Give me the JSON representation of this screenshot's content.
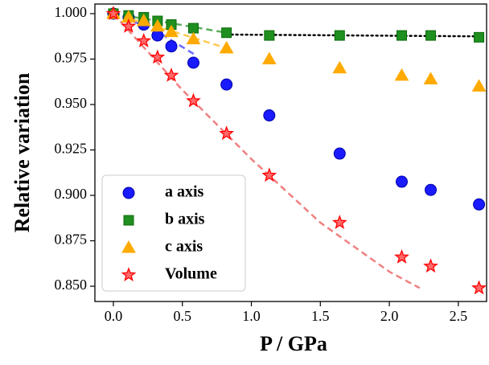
{
  "chart_data": {
    "type": "scatter",
    "xlabel": "P / GPa",
    "ylabel": "Relative variation",
    "x": [
      0,
      0.11,
      0.22,
      0.32,
      0.42,
      0.58,
      0.82,
      1.13,
      1.64,
      2.09,
      2.3,
      2.65
    ],
    "series": [
      {
        "name": "a axis",
        "color": "#1a1aff",
        "marker": "o",
        "values": [
          1.0,
          0.998,
          0.994,
          0.988,
          0.982,
          0.973,
          0.961,
          0.944,
          0.923,
          0.9075,
          0.903,
          0.895
        ]
      },
      {
        "name": "b axis",
        "color": "#1f8f1f",
        "marker": "s",
        "values": [
          1.0,
          0.999,
          0.998,
          0.996,
          0.994,
          0.992,
          0.9895,
          0.988,
          0.988,
          0.988,
          0.988,
          0.987
        ]
      },
      {
        "name": "c axis",
        "color": "#ffaa00",
        "marker": "^",
        "values": [
          1.0,
          0.998,
          0.996,
          0.993,
          0.99,
          0.986,
          0.981,
          0.975,
          0.97,
          0.966,
          0.964,
          0.96
        ]
      },
      {
        "name": "Volume",
        "color": "#ff2a2a",
        "marker": "*",
        "values": [
          1.0,
          0.993,
          0.985,
          0.976,
          0.966,
          0.952,
          0.934,
          0.911,
          0.885,
          0.866,
          0.861,
          0.849
        ]
      }
    ],
    "fits": [
      {
        "color": "#6b6bff",
        "dash": "dashed",
        "x": [
          0,
          0.3,
          0.6
        ],
        "values": [
          1.0,
          0.991,
          0.977
        ]
      },
      {
        "color": "#5aae5a",
        "dash": "dashed",
        "x": [
          0,
          0.4,
          0.82
        ],
        "values": [
          1.0,
          0.995,
          0.9895
        ]
      },
      {
        "color": "#ffc850",
        "dash": "dashed",
        "x": [
          0,
          0.4,
          0.82
        ],
        "values": [
          1.0,
          0.991,
          0.981
        ]
      },
      {
        "color": "#f08080",
        "dash": "dashed",
        "x": [
          0,
          0.5,
          1.0,
          1.5,
          2.0,
          2.22
        ],
        "values": [
          1.0,
          0.958,
          0.92,
          0.885,
          0.858,
          0.849
        ]
      },
      {
        "color": "#000000",
        "dash": "dotted",
        "x": [
          0.82,
          2.65
        ],
        "values": [
          0.9885,
          0.9875
        ]
      }
    ],
    "xlim": [
      -0.134,
      2.705
    ],
    "ylim": [
      0.8416,
      1.0053
    ],
    "xticks": [
      {
        "value": 0,
        "label": "0.0"
      },
      {
        "value": 0.5,
        "label": "0.5"
      },
      {
        "value": 1,
        "label": "1.0"
      },
      {
        "value": 1.5,
        "label": "1.5"
      },
      {
        "value": 2,
        "label": "2.0"
      },
      {
        "value": 2.5,
        "label": "2.5"
      }
    ],
    "yticks": [
      {
        "value": 0.85,
        "label": "0.850"
      },
      {
        "value": 0.875,
        "label": "0.875"
      },
      {
        "value": 0.9,
        "label": "0.900"
      },
      {
        "value": 0.925,
        "label": "0.925"
      },
      {
        "value": 0.95,
        "label": "0.950"
      },
      {
        "value": 0.975,
        "label": "0.975"
      },
      {
        "value": 1,
        "label": "1.000"
      }
    ],
    "legend": "lower left"
  }
}
